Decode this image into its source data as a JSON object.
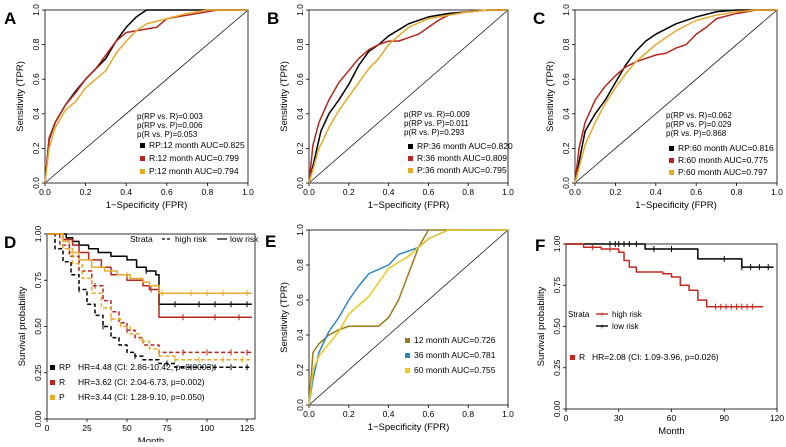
{
  "colors": {
    "black": "#000000",
    "red": "#b5261e",
    "orange": "#e6a92a",
    "olive": "#9c7a1c",
    "blue": "#2c86c6",
    "yellow": "#ecc81c",
    "dark_red": "#c4281c"
  },
  "chart_data": [
    {
      "id": "A",
      "type": "line",
      "panel_letter": "A",
      "xlabel": "1−Specificity (FPR)",
      "ylabel": "Sensitivity (TPR)",
      "xlim": [
        0,
        1
      ],
      "ylim": [
        0,
        1
      ],
      "x_ticks": [
        "0.0",
        "0.2",
        "0.4",
        "0.6",
        "0.8",
        "1.0"
      ],
      "y_ticks": [
        "0.0",
        "0.2",
        "0.4",
        "0.6",
        "0.8",
        "1.0"
      ],
      "diagonal": true,
      "pvalues": [
        "p(RP vs. R)=0.003",
        "p(RP vs. P)=0.006",
        "p(R vs. P)=0.053"
      ],
      "series": [
        {
          "name": "RP:12 month AUC=0.825",
          "color": "black",
          "x": [
            0,
            0.02,
            0.05,
            0.1,
            0.15,
            0.2,
            0.25,
            0.3,
            0.35,
            0.4,
            0.45,
            0.5,
            0.55,
            1
          ],
          "y": [
            0,
            0.25,
            0.35,
            0.45,
            0.53,
            0.6,
            0.66,
            0.72,
            0.82,
            0.9,
            0.96,
            1,
            1,
            1
          ]
        },
        {
          "name": "R:12 month AUC=0.799",
          "color": "red",
          "x": [
            0,
            0.02,
            0.05,
            0.1,
            0.15,
            0.2,
            0.25,
            0.3,
            0.35,
            0.4,
            0.45,
            0.55,
            0.6,
            0.65,
            0.7,
            0.85,
            1
          ],
          "y": [
            0,
            0.26,
            0.35,
            0.45,
            0.52,
            0.6,
            0.66,
            0.74,
            0.82,
            0.87,
            0.88,
            0.9,
            0.95,
            0.96,
            0.97,
            1,
            1
          ]
        },
        {
          "name": "P:12 month AUC=0.794",
          "color": "orange",
          "x": [
            0,
            0.02,
            0.05,
            0.1,
            0.15,
            0.2,
            0.25,
            0.3,
            0.35,
            0.4,
            0.45,
            0.5,
            0.6,
            0.7,
            0.8,
            1
          ],
          "y": [
            0,
            0.2,
            0.32,
            0.42,
            0.47,
            0.55,
            0.6,
            0.65,
            0.75,
            0.82,
            0.88,
            0.92,
            0.95,
            0.98,
            1,
            1
          ]
        }
      ]
    },
    {
      "id": "B",
      "type": "line",
      "panel_letter": "B",
      "xlabel": "1−Specificity (FPR)",
      "ylabel": "Sensitivity (TPR)",
      "xlim": [
        0,
        1
      ],
      "ylim": [
        0,
        1
      ],
      "x_ticks": [
        "0.0",
        "0.2",
        "0.4",
        "0.6",
        "0.8",
        "1.0"
      ],
      "y_ticks": [
        "0.0",
        "0.2",
        "0.4",
        "0.6",
        "0.8",
        "1.0"
      ],
      "diagonal": true,
      "pvalues": [
        "p(RP vs. R)=0.009",
        "p(RP vs. P)=0.011",
        "p(R vs. P)=0.293"
      ],
      "series": [
        {
          "name": "RP:36 month AUC=0.820",
          "color": "black",
          "x": [
            0,
            0.03,
            0.06,
            0.1,
            0.15,
            0.2,
            0.25,
            0.3,
            0.35,
            0.4,
            0.5,
            0.6,
            0.7,
            0.8,
            0.9,
            1
          ],
          "y": [
            0,
            0.15,
            0.3,
            0.4,
            0.48,
            0.57,
            0.68,
            0.76,
            0.8,
            0.85,
            0.92,
            0.96,
            0.98,
            0.99,
            1,
            1
          ]
        },
        {
          "name": "R:36 month AUC=0.809",
          "color": "red",
          "x": [
            0,
            0.02,
            0.05,
            0.1,
            0.15,
            0.2,
            0.25,
            0.3,
            0.35,
            0.4,
            0.45,
            0.5,
            0.55,
            0.6,
            0.65,
            0.7,
            0.8,
            0.9,
            1
          ],
          "y": [
            0,
            0.22,
            0.35,
            0.48,
            0.58,
            0.65,
            0.72,
            0.77,
            0.8,
            0.82,
            0.82,
            0.84,
            0.86,
            0.9,
            0.94,
            0.97,
            0.99,
            1,
            1
          ]
        },
        {
          "name": "P:36 month AUC=0.795",
          "color": "orange",
          "x": [
            0,
            0.05,
            0.1,
            0.15,
            0.2,
            0.25,
            0.3,
            0.35,
            0.4,
            0.5,
            0.6,
            0.7,
            0.8,
            0.9,
            1
          ],
          "y": [
            0,
            0.2,
            0.32,
            0.42,
            0.5,
            0.58,
            0.66,
            0.72,
            0.8,
            0.9,
            0.95,
            0.97,
            0.99,
            1,
            1
          ]
        }
      ]
    },
    {
      "id": "C",
      "type": "line",
      "panel_letter": "C",
      "xlabel": "1−Specificity (FPR)",
      "ylabel": "Sensitivity (TPR)",
      "xlim": [
        0,
        1
      ],
      "ylim": [
        0,
        1
      ],
      "x_ticks": [
        "0.0",
        "0.2",
        "0.4",
        "0.6",
        "0.8",
        "1.0"
      ],
      "y_ticks": [
        "0.0",
        "0.2",
        "0.4",
        "0.6",
        "0.8",
        "1.0"
      ],
      "diagonal": true,
      "pvalues": [
        "p(RP vs. R)=0.062",
        "p(RP vs. P)=0.029",
        "p(R vs. P)=0.868"
      ],
      "series": [
        {
          "name": "RP:60 month AUC=0.816",
          "color": "black",
          "x": [
            0,
            0.03,
            0.05,
            0.1,
            0.15,
            0.2,
            0.25,
            0.3,
            0.35,
            0.4,
            0.5,
            0.6,
            0.7,
            0.8,
            0.9,
            1
          ],
          "y": [
            0,
            0.18,
            0.3,
            0.4,
            0.48,
            0.58,
            0.68,
            0.76,
            0.82,
            0.86,
            0.92,
            0.96,
            0.99,
            1,
            1,
            1
          ]
        },
        {
          "name": "R:60 month AUC=0.775",
          "color": "red",
          "x": [
            0,
            0.02,
            0.05,
            0.1,
            0.15,
            0.2,
            0.25,
            0.3,
            0.35,
            0.4,
            0.45,
            0.5,
            0.55,
            0.6,
            0.65,
            0.7,
            0.8,
            0.9,
            1
          ],
          "y": [
            0,
            0.2,
            0.35,
            0.48,
            0.56,
            0.62,
            0.67,
            0.7,
            0.72,
            0.74,
            0.75,
            0.78,
            0.8,
            0.86,
            0.9,
            0.95,
            0.98,
            1,
            1
          ]
        },
        {
          "name": "P:60 month AUC=0.797",
          "color": "orange",
          "x": [
            0,
            0.05,
            0.1,
            0.15,
            0.2,
            0.25,
            0.3,
            0.35,
            0.4,
            0.5,
            0.6,
            0.7,
            0.8,
            0.9,
            1
          ],
          "y": [
            0,
            0.22,
            0.35,
            0.46,
            0.55,
            0.63,
            0.7,
            0.75,
            0.8,
            0.88,
            0.94,
            0.97,
            0.99,
            1,
            1
          ]
        }
      ]
    },
    {
      "id": "D",
      "type": "line",
      "subtype": "kaplan-meier",
      "panel_letter": "D",
      "xlabel": "Month",
      "ylabel": "Survival probability",
      "xlim": [
        0,
        130
      ],
      "ylim": [
        0,
        1
      ],
      "x_ticks": [
        "0",
        "25",
        "50",
        "75",
        "100",
        "125"
      ],
      "x_tick_values": [
        0,
        25,
        50,
        75,
        100,
        125
      ],
      "y_ticks": [
        "0.00",
        "0.25",
        "0.50",
        "0.75",
        "1.00"
      ],
      "y_tick_values": [
        0,
        0.25,
        0.5,
        0.75,
        1
      ],
      "strata_title": "Strata",
      "strata_high": "high risk",
      "strata_low": "low risk",
      "legend_stats": [
        {
          "code": "RP",
          "text": "HR=4.48 (CI: 2.86-10.42, p=0.0003)",
          "color": "black"
        },
        {
          "code": "R",
          "text": "HR=3.62 (CI: 2.04-6.73, p=0.002)",
          "color": "red"
        },
        {
          "code": "P",
          "text": "HR=3.44 (CI: 1.28-9.10, p=0.050)",
          "color": "orange"
        }
      ],
      "series": [
        {
          "name": "RP low risk",
          "color": "black",
          "style": "solid",
          "x": [
            0,
            12,
            16,
            20,
            26,
            32,
            40,
            50,
            56,
            62,
            68,
            70,
            80,
            90,
            100,
            128
          ],
          "y": [
            1,
            0.98,
            0.96,
            0.94,
            0.92,
            0.9,
            0.88,
            0.86,
            0.82,
            0.8,
            0.78,
            0.62,
            0.62,
            0.62,
            0.62,
            0.62
          ],
          "censor_x": [
            62,
            80,
            95,
            105,
            115,
            125
          ]
        },
        {
          "name": "R low risk",
          "color": "red",
          "style": "solid",
          "x": [
            0,
            10,
            16,
            20,
            26,
            34,
            40,
            50,
            60,
            64,
            70,
            80,
            100,
            128
          ],
          "y": [
            1,
            0.97,
            0.94,
            0.9,
            0.86,
            0.82,
            0.78,
            0.75,
            0.72,
            0.7,
            0.55,
            0.55,
            0.55,
            0.55
          ],
          "censor_x": [
            65,
            85,
            105,
            120
          ]
        },
        {
          "name": "P low risk",
          "color": "orange",
          "style": "solid",
          "x": [
            0,
            10,
            14,
            20,
            28,
            36,
            44,
            52,
            60,
            64,
            70,
            90,
            128
          ],
          "y": [
            1,
            0.96,
            0.9,
            0.86,
            0.82,
            0.8,
            0.78,
            0.76,
            0.74,
            0.72,
            0.68,
            0.68,
            0.68
          ],
          "censor_x": [
            50,
            72,
            90,
            100,
            110,
            125
          ]
        },
        {
          "name": "RP high risk",
          "color": "black",
          "style": "dashed",
          "x": [
            0,
            5,
            10,
            15,
            20,
            25,
            30,
            35,
            40,
            45,
            50,
            55,
            60,
            70,
            80,
            90,
            100,
            128
          ],
          "y": [
            1,
            0.92,
            0.85,
            0.78,
            0.7,
            0.62,
            0.56,
            0.5,
            0.44,
            0.4,
            0.36,
            0.34,
            0.32,
            0.3,
            0.28,
            0.28,
            0.28,
            0.28
          ],
          "censor_x": [
            20,
            35,
            55,
            75,
            90,
            105,
            115,
            125
          ]
        },
        {
          "name": "R high risk",
          "color": "red",
          "style": "dashed",
          "x": [
            0,
            8,
            14,
            20,
            28,
            35,
            40,
            45,
            50,
            55,
            60,
            70,
            80,
            100,
            128
          ],
          "y": [
            1,
            0.94,
            0.88,
            0.8,
            0.72,
            0.64,
            0.58,
            0.52,
            0.48,
            0.44,
            0.4,
            0.36,
            0.36,
            0.36,
            0.36
          ],
          "censor_x": [
            30,
            50,
            70,
            85,
            100,
            115,
            125
          ]
        },
        {
          "name": "P high risk",
          "color": "orange",
          "style": "dashed",
          "x": [
            0,
            10,
            16,
            22,
            28,
            34,
            40,
            46,
            52,
            58,
            64,
            70,
            80,
            100,
            128
          ],
          "y": [
            1,
            0.92,
            0.84,
            0.76,
            0.68,
            0.6,
            0.54,
            0.5,
            0.46,
            0.42,
            0.38,
            0.34,
            0.32,
            0.32,
            0.32
          ],
          "censor_x": [
            40,
            60,
            80,
            95,
            110,
            122
          ]
        }
      ]
    },
    {
      "id": "E",
      "type": "line",
      "panel_letter": "E",
      "xlabel": "1−Specificity (FPR)",
      "ylabel": "Sensitivity (TPR)",
      "xlim": [
        0,
        1
      ],
      "ylim": [
        0,
        1
      ],
      "x_ticks": [
        "0.0",
        "0.2",
        "0.4",
        "0.6",
        "0.8",
        "1.0"
      ],
      "y_ticks": [
        "0.0",
        "0.2",
        "0.4",
        "0.6",
        "0.8",
        "1.0"
      ],
      "diagonal": true,
      "pvalues": [],
      "series": [
        {
          "name": "12 month AUC=0.726",
          "color": "olive",
          "x": [
            0,
            0.02,
            0.05,
            0.1,
            0.15,
            0.2,
            0.3,
            0.35,
            0.4,
            0.45,
            0.5,
            0.55,
            0.6,
            0.7,
            1
          ],
          "y": [
            0,
            0.3,
            0.35,
            0.4,
            0.43,
            0.45,
            0.45,
            0.45,
            0.5,
            0.6,
            0.75,
            0.9,
            1,
            1,
            1
          ]
        },
        {
          "name": "36 month AUC=0.781",
          "color": "blue",
          "x": [
            0,
            0.02,
            0.05,
            0.1,
            0.15,
            0.2,
            0.25,
            0.3,
            0.4,
            0.45,
            0.55,
            0.6,
            0.7,
            1
          ],
          "y": [
            0,
            0.15,
            0.3,
            0.42,
            0.5,
            0.6,
            0.68,
            0.75,
            0.8,
            0.86,
            0.9,
            0.95,
            1,
            1
          ]
        },
        {
          "name": "60 month AUC=0.755",
          "color": "yellow",
          "x": [
            0,
            0.02,
            0.05,
            0.1,
            0.15,
            0.2,
            0.3,
            0.35,
            0.4,
            0.5,
            0.55,
            0.6,
            0.7,
            1
          ],
          "y": [
            0,
            0.2,
            0.28,
            0.35,
            0.42,
            0.52,
            0.62,
            0.7,
            0.78,
            0.85,
            0.9,
            0.95,
            1,
            1
          ]
        }
      ]
    },
    {
      "id": "F",
      "type": "line",
      "subtype": "kaplan-meier",
      "panel_letter": "F",
      "xlabel": "Month",
      "ylabel": "Survival probability",
      "xlim": [
        0,
        120
      ],
      "ylim": [
        0,
        1
      ],
      "x_ticks": [
        "0",
        "30",
        "60",
        "90",
        "120"
      ],
      "x_tick_values": [
        0,
        30,
        60,
        90,
        120
      ],
      "y_ticks": [
        "0.00",
        "0.25",
        "0.50",
        "0.75",
        "1.00"
      ],
      "y_tick_values": [
        0,
        0.25,
        0.5,
        0.75,
        1
      ],
      "strata_title": "Strata",
      "strata_high": "high risk",
      "strata_low": "low risk",
      "legend_stats": [
        {
          "code": "R",
          "text": "HR=2.08 (CI: 1.09-3.96, p=0.026)",
          "color": "dark_red"
        }
      ],
      "series": [
        {
          "name": "low risk",
          "color": "black",
          "style": "solid",
          "x": [
            0,
            20,
            40,
            45,
            70,
            75,
            100,
            118
          ],
          "y": [
            1,
            1,
            1,
            0.97,
            0.97,
            0.91,
            0.86,
            0.86
          ],
          "censor_x": [
            25,
            28,
            30,
            33,
            36,
            40,
            50,
            60,
            90,
            100,
            105,
            110,
            115
          ]
        },
        {
          "name": "high risk",
          "color": "dark_red",
          "style": "solid",
          "x": [
            0,
            10,
            20,
            30,
            33,
            36,
            40,
            55,
            60,
            65,
            70,
            75,
            80,
            112
          ],
          "y": [
            1,
            0.98,
            0.97,
            0.95,
            0.9,
            0.86,
            0.83,
            0.82,
            0.8,
            0.75,
            0.72,
            0.66,
            0.62,
            0.62
          ],
          "censor_x": [
            15,
            25,
            85,
            88,
            91,
            94,
            97,
            100,
            103,
            106
          ]
        }
      ]
    }
  ]
}
